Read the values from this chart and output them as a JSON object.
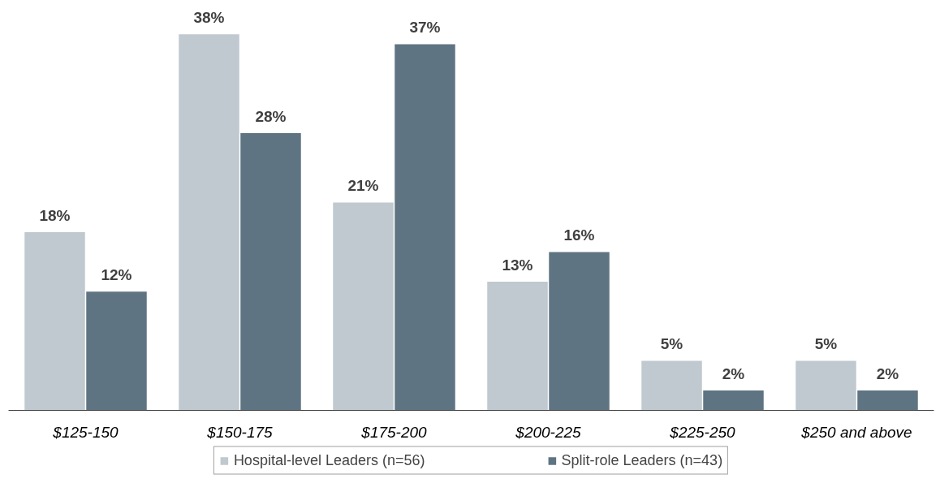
{
  "chart_data": {
    "type": "bar",
    "categories": [
      "$125-150",
      "$150-175",
      "$175-200",
      "$200-225",
      "$225-250",
      "$250 and above"
    ],
    "series": [
      {
        "name": "Hospital-level Leaders (n=56)",
        "color": "#bfc9cf",
        "values": [
          18,
          38,
          21,
          13,
          5,
          5
        ],
        "value_labels": [
          "18%",
          "38%",
          "21%",
          "13%",
          "5%",
          "5%"
        ]
      },
      {
        "name": "Split-role Leaders (n=43)",
        "color": "#5f7482",
        "values": [
          12,
          28,
          37,
          16,
          2,
          2
        ],
        "value_labels": [
          "12%",
          "28%",
          "37%",
          "16%",
          "2%",
          "2%"
        ]
      }
    ],
    "legend": "bottom",
    "grid": false
  }
}
